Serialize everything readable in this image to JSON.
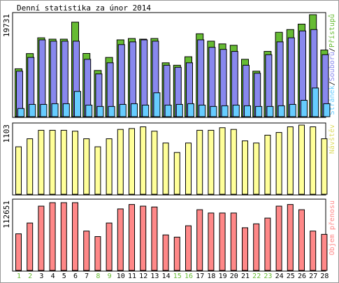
{
  "chart_data": {
    "type": "bar",
    "title": "Denní statistika za únor 2014",
    "categories": [
      "1",
      "2",
      "3",
      "4",
      "5",
      "6",
      "7",
      "8",
      "9",
      "10",
      "11",
      "12",
      "13",
      "14",
      "15",
      "16",
      "17",
      "18",
      "19",
      "20",
      "21",
      "22",
      "23",
      "24",
      "25",
      "26",
      "27",
      "28"
    ],
    "weekend_days": [
      "1",
      "2",
      "8",
      "9",
      "15",
      "16",
      "22",
      "23"
    ],
    "panels": [
      {
        "id": "hits",
        "ymax_label": "19731",
        "ymax": 19731,
        "legend": [
          "Stránek",
          "Souborů",
          "Přístupů"
        ],
        "series": [
          {
            "name": "Přístupů",
            "color": "#66bb33",
            "values": [
              9264,
              12206,
              15260,
              14997,
              14997,
              18287,
              12232,
              8938,
              11464,
              14864,
              15125,
              14997,
              15125,
              10426,
              9951,
              11595,
              16037,
              14607,
              14080,
              13814,
              11102,
              8805,
              12629,
              16325,
              16855,
              17906,
              19731,
              12894
            ]
          },
          {
            "name": "Souborů",
            "color": "#8888ee",
            "values": [
              8805,
              11464,
              14864,
              14607,
              14607,
              14607,
              11102,
              8276,
              10426,
              13946,
              14476,
              14864,
              14607,
              9951,
              9557,
              10426,
              14864,
              13418,
              13020,
              12629,
              9951,
              8412,
              11991,
              14476,
              15260,
              16589,
              16855,
              11991
            ]
          },
          {
            "name": "Stránek",
            "color": "#66ccff",
            "values": [
              1586,
              2379,
              2379,
              2511,
              2511,
              4891,
              2246,
              1982,
              1982,
              2379,
              2511,
              2246,
              4625,
              2246,
              2379,
              2511,
              2246,
              1982,
              2114,
              2246,
              2114,
              1982,
              1982,
              2114,
              2379,
              3175,
              5553,
              2511
            ]
          }
        ]
      },
      {
        "id": "visits",
        "ymax_label": "1103",
        "ymax": 1103,
        "legend": [
          "Návštěv"
        ],
        "series": [
          {
            "name": "Návštěv",
            "color": "#ffff99",
            "values": [
              757,
              885,
              1020,
              1020,
              1020,
              1006,
              885,
              757,
              885,
              1034,
              1048,
              1075,
              1006,
              817,
              666,
              817,
              1020,
              1020,
              1061,
              1034,
              851,
              817,
              942,
              985,
              1075,
              1103,
              1075,
              885
            ]
          }
        ]
      },
      {
        "id": "volume",
        "ymax_label": "112651",
        "ymax": 112651,
        "legend": [
          "Objem přenosu"
        ],
        "series": [
          {
            "name": "Objem přenosu",
            "color": "#ff8888",
            "values": [
              59617,
              77218,
              104689,
              110357,
              110357,
              110357,
              64111,
              55124,
              77218,
              100196,
              107375,
              104689,
              103308,
              57825,
              54212,
              72728,
              98851,
              93484,
              93484,
              93484,
              69505,
              75867,
              85226,
              104689,
              107375,
              98851,
              64111,
              58759
            ]
          }
        ]
      }
    ]
  }
}
